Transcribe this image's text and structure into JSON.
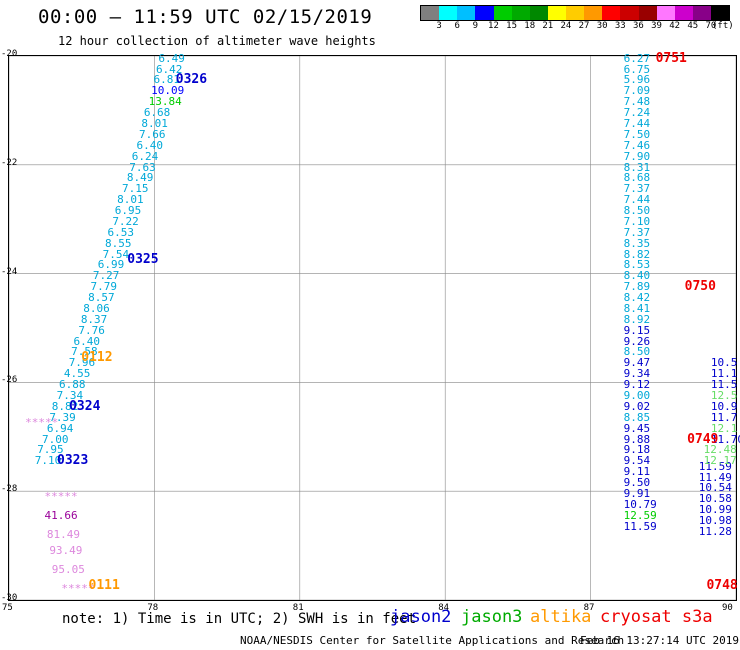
{
  "header": {
    "title": "00:00 – 11:59 UTC 02/15/2019",
    "subtitle": "12 hour collection of altimeter wave heights"
  },
  "legend": {
    "colors": [
      "#7f7f7f",
      "#00ffff",
      "#00bfff",
      "#0000ff",
      "#00cc00",
      "#00aa00",
      "#008800",
      "#ffff00",
      "#ffcc00",
      "#ff9900",
      "#ff0000",
      "#cc0000",
      "#990000",
      "#ff77ff",
      "#cc00cc",
      "#880088",
      "#000000"
    ],
    "labels": [
      "3",
      "6",
      "9",
      "12",
      "15",
      "18",
      "21",
      "24",
      "27",
      "30",
      "33",
      "36",
      "39",
      "42",
      "45",
      "70"
    ],
    "unit": "(ft)"
  },
  "axes": {
    "x_ticks": [
      "75",
      "78",
      "81",
      "84",
      "87",
      "90"
    ],
    "y_ticks": [
      "-20",
      "-22",
      "-24",
      "-26",
      "-28",
      "-30"
    ]
  },
  "chart_data": {
    "type": "scatter",
    "title": "12 hour collection of altimeter wave heights",
    "xlim": [
      75,
      90
    ],
    "ylim": [
      -30,
      -20
    ],
    "x_ticks": [
      75,
      78,
      81,
      84,
      87,
      90
    ],
    "y_ticks": [
      -20,
      -22,
      -24,
      -26,
      -28,
      -30
    ],
    "grid": true,
    "tracks": [
      {
        "name": "track-a",
        "color": "#00a8d8",
        "points": [
          {
            "lon": 78.35,
            "lat": -20.05,
            "v": "6.49"
          },
          {
            "lon": 78.3,
            "lat": -20.25,
            "v": "6.42"
          },
          {
            "lon": 78.25,
            "lat": -20.45,
            "v": "6.81"
          },
          {
            "lon": 78.2,
            "lat": -20.65,
            "v": "10.09",
            "c": "#0000ff"
          },
          {
            "lon": 78.15,
            "lat": -20.85,
            "v": "13.84",
            "c": "#00cc00"
          },
          {
            "lon": 78.05,
            "lat": -21.05,
            "v": "6.68"
          },
          {
            "lon": 78.0,
            "lat": -21.25,
            "v": "8.01"
          },
          {
            "lon": 77.95,
            "lat": -21.45,
            "v": "7.66"
          },
          {
            "lon": 77.9,
            "lat": -21.65,
            "v": "6.40"
          },
          {
            "lon": 77.8,
            "lat": -21.85,
            "v": "6.24"
          },
          {
            "lon": 77.75,
            "lat": -22.05,
            "v": "7.63"
          },
          {
            "lon": 77.7,
            "lat": -22.25,
            "v": "8.49"
          },
          {
            "lon": 77.6,
            "lat": -22.45,
            "v": "7.15"
          },
          {
            "lon": 77.5,
            "lat": -22.65,
            "v": "8.01"
          },
          {
            "lon": 77.45,
            "lat": -22.85,
            "v": "6.95"
          },
          {
            "lon": 77.4,
            "lat": -23.05,
            "v": "7.22"
          },
          {
            "lon": 77.3,
            "lat": -23.25,
            "v": "6.53"
          },
          {
            "lon": 77.25,
            "lat": -23.45,
            "v": "8.55"
          },
          {
            "lon": 77.2,
            "lat": -23.65,
            "v": "7.54"
          },
          {
            "lon": 77.1,
            "lat": -23.85,
            "v": "6.99"
          },
          {
            "lon": 77.0,
            "lat": -24.05,
            "v": "7.27"
          },
          {
            "lon": 76.95,
            "lat": -24.25,
            "v": "7.79"
          },
          {
            "lon": 76.9,
            "lat": -24.45,
            "v": "8.57"
          },
          {
            "lon": 76.8,
            "lat": -24.65,
            "v": "8.06"
          },
          {
            "lon": 76.75,
            "lat": -24.85,
            "v": "8.37"
          },
          {
            "lon": 76.7,
            "lat": -25.05,
            "v": "7.76"
          },
          {
            "lon": 76.6,
            "lat": -25.25,
            "v": "6.40"
          },
          {
            "lon": 76.55,
            "lat": -25.45,
            "v": "7.58"
          },
          {
            "lon": 76.5,
            "lat": -25.65,
            "v": "7.96"
          },
          {
            "lon": 76.4,
            "lat": -25.85,
            "v": "4.55"
          },
          {
            "lon": 76.3,
            "lat": -26.05,
            "v": "6.88"
          },
          {
            "lon": 76.25,
            "lat": -26.25,
            "v": "7.34"
          },
          {
            "lon": 76.15,
            "lat": -26.45,
            "v": "8.82"
          },
          {
            "lon": 76.1,
            "lat": -26.65,
            "v": "7.39"
          },
          {
            "lon": 76.05,
            "lat": -26.85,
            "v": "6.94"
          },
          {
            "lon": 75.95,
            "lat": -27.05,
            "v": "7.00"
          },
          {
            "lon": 75.85,
            "lat": -27.25,
            "v": "7.95"
          },
          {
            "lon": 75.8,
            "lat": -27.45,
            "v": "7.10"
          }
        ]
      },
      {
        "name": "track-b",
        "color": "#00a8d8",
        "points": [
          {
            "lon": 87.95,
            "lat": -20.05,
            "v": "6.27"
          },
          {
            "lon": 87.95,
            "lat": -20.25,
            "v": "6.75"
          },
          {
            "lon": 87.95,
            "lat": -20.45,
            "v": "5.96"
          },
          {
            "lon": 87.95,
            "lat": -20.65,
            "v": "7.09"
          },
          {
            "lon": 87.95,
            "lat": -20.85,
            "v": "7.48"
          },
          {
            "lon": 87.95,
            "lat": -21.05,
            "v": "7.24"
          },
          {
            "lon": 87.95,
            "lat": -21.25,
            "v": "7.44"
          },
          {
            "lon": 87.95,
            "lat": -21.45,
            "v": "7.50"
          },
          {
            "lon": 87.95,
            "lat": -21.65,
            "v": "7.46"
          },
          {
            "lon": 87.95,
            "lat": -21.85,
            "v": "7.90"
          },
          {
            "lon": 87.95,
            "lat": -22.05,
            "v": "8.31"
          },
          {
            "lon": 87.95,
            "lat": -22.25,
            "v": "8.68"
          },
          {
            "lon": 87.95,
            "lat": -22.45,
            "v": "7.37"
          },
          {
            "lon": 87.95,
            "lat": -22.65,
            "v": "7.44"
          },
          {
            "lon": 87.95,
            "lat": -22.85,
            "v": "8.50"
          },
          {
            "lon": 87.95,
            "lat": -23.05,
            "v": "7.10"
          },
          {
            "lon": 87.95,
            "lat": -23.25,
            "v": "7.37"
          },
          {
            "lon": 87.95,
            "lat": -23.45,
            "v": "8.35"
          },
          {
            "lon": 87.95,
            "lat": -23.65,
            "v": "8.82"
          },
          {
            "lon": 87.95,
            "lat": -23.85,
            "v": "8.53"
          },
          {
            "lon": 87.95,
            "lat": -24.05,
            "v": "8.40"
          },
          {
            "lon": 87.95,
            "lat": -24.25,
            "v": "7.89"
          },
          {
            "lon": 87.95,
            "lat": -24.45,
            "v": "8.42"
          },
          {
            "lon": 87.95,
            "lat": -24.65,
            "v": "8.41"
          },
          {
            "lon": 87.95,
            "lat": -24.85,
            "v": "8.92"
          },
          {
            "lon": 87.95,
            "lat": -25.05,
            "v": "9.15",
            "c": "#0000cc"
          },
          {
            "lon": 87.95,
            "lat": -25.25,
            "v": "9.26",
            "c": "#0000cc"
          },
          {
            "lon": 87.95,
            "lat": -25.45,
            "v": "8.50"
          },
          {
            "lon": 87.95,
            "lat": -25.65,
            "v": "9.47",
            "c": "#0000cc"
          },
          {
            "lon": 87.95,
            "lat": -25.85,
            "v": "9.34",
            "c": "#0000cc"
          },
          {
            "lon": 87.95,
            "lat": -26.05,
            "v": "9.12",
            "c": "#0000cc"
          },
          {
            "lon": 87.95,
            "lat": -26.25,
            "v": "9.00"
          },
          {
            "lon": 87.95,
            "lat": -26.45,
            "v": "9.02",
            "c": "#0000cc"
          },
          {
            "lon": 87.95,
            "lat": -26.65,
            "v": "8.85"
          },
          {
            "lon": 87.95,
            "lat": -26.85,
            "v": "9.45",
            "c": "#0000cc"
          },
          {
            "lon": 87.95,
            "lat": -27.05,
            "v": "9.88",
            "c": "#0000cc"
          },
          {
            "lon": 87.95,
            "lat": -27.25,
            "v": "9.18",
            "c": "#0000cc"
          },
          {
            "lon": 87.95,
            "lat": -27.45,
            "v": "9.54",
            "c": "#0000cc"
          },
          {
            "lon": 87.95,
            "lat": -27.65,
            "v": "9.11",
            "c": "#0000cc"
          },
          {
            "lon": 87.95,
            "lat": -27.85,
            "v": "9.50",
            "c": "#0000cc"
          },
          {
            "lon": 87.95,
            "lat": -28.05,
            "v": "9.91",
            "c": "#0000cc"
          },
          {
            "lon": 87.95,
            "lat": -28.25,
            "v": "10.79",
            "c": "#0000cc"
          },
          {
            "lon": 87.95,
            "lat": -28.45,
            "v": "12.59",
            "c": "#00cc00"
          },
          {
            "lon": 87.95,
            "lat": -28.65,
            "v": "11.59",
            "c": "#0000cc"
          }
        ]
      },
      {
        "name": "track-c",
        "color": "#0000cc",
        "points": [
          {
            "lon": 89.5,
            "lat": -27.55,
            "v": "11.59"
          },
          {
            "lon": 89.5,
            "lat": -27.75,
            "v": "11.49"
          },
          {
            "lon": 89.5,
            "lat": -27.95,
            "v": "10.54"
          },
          {
            "lon": 89.5,
            "lat": -28.15,
            "v": "10.58"
          },
          {
            "lon": 89.5,
            "lat": -28.35,
            "v": "10.99"
          },
          {
            "lon": 89.5,
            "lat": -28.55,
            "v": "10.98"
          },
          {
            "lon": 89.5,
            "lat": -28.75,
            "v": "11.28"
          }
        ]
      },
      {
        "name": "track-d",
        "color": "#0000cc",
        "points": [
          {
            "lon": 89.75,
            "lat": -25.65,
            "v": "10.5"
          },
          {
            "lon": 89.75,
            "lat": -25.85,
            "v": "11.1"
          },
          {
            "lon": 89.75,
            "lat": -26.05,
            "v": "11.5"
          },
          {
            "lon": 89.75,
            "lat": -26.25,
            "v": "12.5",
            "c": "#66dd66"
          },
          {
            "lon": 89.75,
            "lat": -26.45,
            "v": "10.9"
          },
          {
            "lon": 89.75,
            "lat": -26.65,
            "v": "11.7"
          },
          {
            "lon": 89.75,
            "lat": -26.85,
            "v": "12.1",
            "c": "#66dd66"
          },
          {
            "lon": 89.75,
            "lat": -27.05,
            "v": "11.70"
          },
          {
            "lon": 89.6,
            "lat": -27.25,
            "v": "12.48",
            "c": "#66dd66"
          },
          {
            "lon": 89.6,
            "lat": -27.45,
            "v": "12.17",
            "c": "#66dd66"
          }
        ]
      },
      {
        "name": "track-e",
        "color": "#dd88dd",
        "points": [
          {
            "lon": 75.6,
            "lat": -26.75,
            "v": "*****"
          },
          {
            "lon": 76.0,
            "lat": -28.1,
            "v": "*****"
          },
          {
            "lon": 76.0,
            "lat": -28.45,
            "v": "41.66",
            "c": "#990099"
          },
          {
            "lon": 76.05,
            "lat": -28.8,
            "v": "81.49"
          },
          {
            "lon": 76.1,
            "lat": -29.1,
            "v": "93.49"
          },
          {
            "lon": 76.15,
            "lat": -29.45,
            "v": "95.05"
          },
          {
            "lon": 76.35,
            "lat": -29.8,
            "v": "*****"
          }
        ]
      }
    ],
    "times": [
      {
        "lon": 78.75,
        "lat": -20.45,
        "t": "0326",
        "c": "#0000cc"
      },
      {
        "lon": 77.75,
        "lat": -23.75,
        "t": "0325",
        "c": "#0000cc"
      },
      {
        "lon": 76.8,
        "lat": -25.55,
        "t": "0112",
        "c": "#ff9900"
      },
      {
        "lon": 76.55,
        "lat": -26.45,
        "t": "0324",
        "c": "#0000cc"
      },
      {
        "lon": 76.3,
        "lat": -27.45,
        "t": "0323",
        "c": "#0000cc"
      },
      {
        "lon": 76.95,
        "lat": -29.75,
        "t": "0111",
        "c": "#ff9900"
      },
      {
        "lon": 88.65,
        "lat": -20.05,
        "t": "0751",
        "c": "#ee0000"
      },
      {
        "lon": 89.25,
        "lat": -24.25,
        "t": "0750",
        "c": "#ee0000"
      },
      {
        "lon": 89.3,
        "lat": -27.05,
        "t": "0749",
        "c": "#ee0000"
      },
      {
        "lon": 89.7,
        "lat": -29.75,
        "t": "0748",
        "c": "#ee0000"
      }
    ]
  },
  "footer": {
    "note": "note: 1) Time is in UTC; 2) SWH is in feet",
    "satellites": [
      {
        "name": "jason2",
        "color": "#0000cc"
      },
      {
        "name": "jason3",
        "color": "#00aa00"
      },
      {
        "name": "altika",
        "color": "#ff9900"
      },
      {
        "name": "cryosat s3a",
        "color": "#ee0000"
      }
    ],
    "credit": "NOAA/NESDIS Center for Satellite Applications and Research",
    "timestamp": "Feb 16 13:27:14 UTC 2019"
  }
}
